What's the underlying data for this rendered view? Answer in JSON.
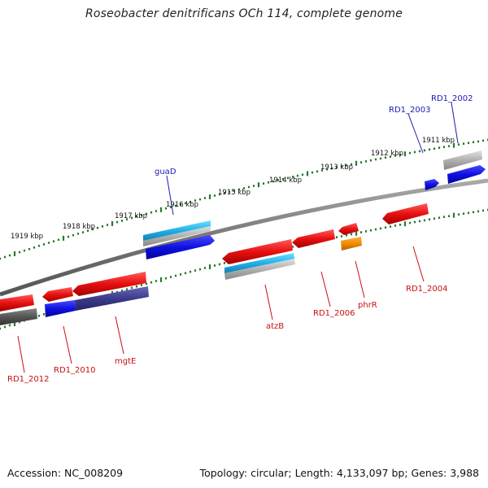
{
  "title": "Roseobacter denitrificans OCh 114, complete genome",
  "footer": {
    "accession": "Accession: NC_008209",
    "topology": "Topology: circular; Length: 4,133,097 bp; Genes: 3,988"
  },
  "colors": {
    "forward_gene": "#1010e0",
    "reverse_gene": "#e81010",
    "forward_label": "#1a1ab0",
    "reverse_label": "#c81010",
    "rna": "#20b0e8",
    "pseudo": "#a0a0a0",
    "orange_gene": "#f08c00",
    "purple_gene": "#3c3a8c",
    "dark_gene": "#555555",
    "tick": "#2a7a2a",
    "backbone": "#7a7a7a"
  },
  "ruler_labels": [
    "1911 kbp",
    "1912 kbp",
    "1913 kbp",
    "1914 kbp",
    "1915 kbp",
    "1916 kbp",
    "1917 kbp",
    "1918 kbp",
    "1919 kbp"
  ],
  "genes": {
    "forward": [
      "RD1_2002",
      "RD1_2003",
      "guaD"
    ],
    "reverse": [
      "RD1_2004",
      "phrR",
      "RD1_2006",
      "atzB",
      "mgtE",
      "RD1_2010",
      "RD1_2012"
    ]
  }
}
